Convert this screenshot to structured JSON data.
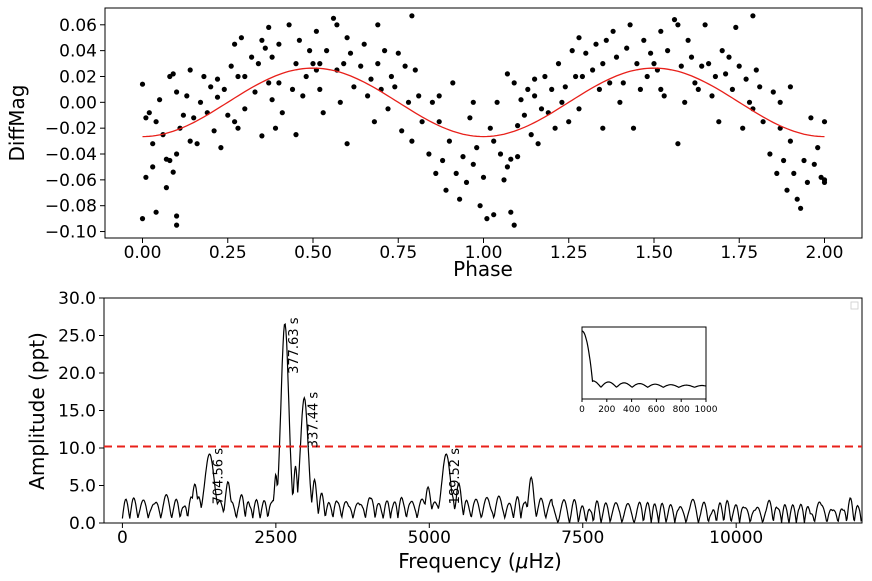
{
  "colors": {
    "points": "#000000",
    "fit": "#e8201a",
    "threshold": "#e8201a",
    "spectrum": "#000000"
  },
  "chart_data": [
    {
      "type": "scatter",
      "xlabel": "Phase",
      "ylabel": "DiffMag",
      "xlim": [
        -0.11,
        2.11
      ],
      "ylim": [
        -0.105,
        0.073
      ],
      "xticks": [
        0.0,
        0.25,
        0.5,
        0.75,
        1.0,
        1.25,
        1.5,
        1.75,
        2.0
      ],
      "xtick_labels": [
        "0.00",
        "0.25",
        "0.50",
        "0.75",
        "1.00",
        "1.25",
        "1.50",
        "1.75",
        "2.00"
      ],
      "yticks": [
        0.06,
        0.04,
        0.02,
        0.0,
        -0.02,
        -0.04,
        -0.06,
        -0.08,
        -0.1
      ],
      "ytick_labels": [
        "0.06",
        "0.04",
        "0.02",
        "0.00",
        "−0.02",
        "−0.04",
        "−0.06",
        "−0.08",
        "−0.10"
      ],
      "fit": {
        "name": "sinusoid fit",
        "amplitude": 0.0265,
        "peak_phase": 0.5
      },
      "points": [
        [
          0.0,
          -0.09
        ],
        [
          0.0,
          0.014
        ],
        [
          0.01,
          -0.012
        ],
        [
          0.01,
          -0.058
        ],
        [
          0.02,
          -0.008
        ],
        [
          0.03,
          -0.05
        ],
        [
          0.03,
          -0.032
        ],
        [
          0.04,
          -0.085
        ],
        [
          0.04,
          -0.015
        ],
        [
          0.05,
          0.002
        ],
        [
          0.06,
          -0.025
        ],
        [
          0.07,
          -0.044
        ],
        [
          0.07,
          -0.066
        ],
        [
          0.08,
          -0.045
        ],
        [
          0.08,
          0.02
        ],
        [
          0.09,
          0.022
        ],
        [
          0.09,
          -0.054
        ],
        [
          0.1,
          -0.088
        ],
        [
          0.1,
          -0.095
        ],
        [
          0.1,
          -0.04
        ],
        [
          0.1,
          0.008
        ],
        [
          0.11,
          -0.02
        ],
        [
          0.12,
          -0.01
        ],
        [
          0.13,
          0.005
        ],
        [
          0.14,
          -0.03
        ],
        [
          0.14,
          0.025
        ],
        [
          0.15,
          -0.012
        ],
        [
          0.16,
          -0.032
        ],
        [
          0.17,
          0.0
        ],
        [
          0.18,
          0.02
        ],
        [
          0.19,
          -0.008
        ],
        [
          0.2,
          0.012
        ],
        [
          0.21,
          -0.022
        ],
        [
          0.22,
          0.018
        ],
        [
          0.22,
          0.004
        ],
        [
          0.23,
          -0.035
        ],
        [
          0.24,
          0.01
        ],
        [
          0.25,
          -0.01
        ],
        [
          0.26,
          0.028
        ],
        [
          0.27,
          0.045
        ],
        [
          0.27,
          -0.015
        ],
        [
          0.28,
          0.02
        ],
        [
          0.28,
          -0.02
        ],
        [
          0.29,
          0.05
        ],
        [
          0.3,
          -0.005
        ],
        [
          0.3,
          0.02
        ],
        [
          0.32,
          0.035
        ],
        [
          0.33,
          0.008
        ],
        [
          0.34,
          0.03
        ],
        [
          0.35,
          0.048
        ],
        [
          0.35,
          -0.026
        ],
        [
          0.36,
          0.042
        ],
        [
          0.37,
          0.015
        ],
        [
          0.37,
          0.058
        ],
        [
          0.38,
          0.002
        ],
        [
          0.38,
          0.035
        ],
        [
          0.39,
          -0.02
        ],
        [
          0.4,
          0.015
        ],
        [
          0.4,
          0.045
        ],
        [
          0.41,
          -0.008
        ],
        [
          0.43,
          0.06
        ],
        [
          0.44,
          0.01
        ],
        [
          0.45,
          0.03
        ],
        [
          0.45,
          -0.025
        ],
        [
          0.46,
          0.048
        ],
        [
          0.47,
          0.005
        ],
        [
          0.48,
          0.02
        ],
        [
          0.49,
          0.04
        ],
        [
          0.5,
          0.03
        ],
        [
          0.51,
          0.025
        ],
        [
          0.51,
          0.055
        ],
        [
          0.52,
          0.01
        ],
        [
          0.52,
          0.03
        ],
        [
          0.53,
          -0.008
        ],
        [
          0.54,
          0.04
        ],
        [
          0.56,
          0.065
        ],
        [
          0.57,
          0.025
        ],
        [
          0.57,
          0.06
        ],
        [
          0.58,
          0.0
        ],
        [
          0.59,
          0.03
        ],
        [
          0.6,
          -0.032
        ],
        [
          0.6,
          0.05
        ],
        [
          0.61,
          0.038
        ],
        [
          0.62,
          0.012
        ],
        [
          0.64,
          0.028
        ],
        [
          0.65,
          0.045
        ],
        [
          0.66,
          0.005
        ],
        [
          0.67,
          0.018
        ],
        [
          0.68,
          -0.015
        ],
        [
          0.69,
          0.03
        ],
        [
          0.69,
          0.06
        ],
        [
          0.7,
          0.01
        ],
        [
          0.71,
          0.04
        ],
        [
          0.72,
          -0.005
        ],
        [
          0.73,
          0.02
        ],
        [
          0.74,
          0.012
        ],
        [
          0.75,
          0.038
        ],
        [
          0.76,
          -0.022
        ],
        [
          0.77,
          0.028
        ],
        [
          0.78,
          0.0
        ],
        [
          0.79,
          0.067
        ],
        [
          0.79,
          -0.03
        ],
        [
          0.8,
          0.025
        ],
        [
          0.81,
          0.005
        ],
        [
          0.82,
          -0.015
        ],
        [
          0.84,
          -0.04
        ],
        [
          0.85,
          0.0
        ],
        [
          0.86,
          -0.055
        ],
        [
          0.87,
          -0.015
        ],
        [
          0.87,
          0.005
        ],
        [
          0.88,
          -0.045
        ],
        [
          0.89,
          -0.068
        ],
        [
          0.9,
          -0.03
        ],
        [
          0.91,
          0.015
        ],
        [
          0.92,
          -0.055
        ],
        [
          0.93,
          -0.075
        ],
        [
          0.94,
          -0.042
        ],
        [
          0.95,
          -0.062
        ],
        [
          0.96,
          -0.012
        ],
        [
          0.97,
          0.0
        ],
        [
          0.97,
          -0.048
        ],
        [
          0.98,
          -0.035
        ],
        [
          0.99,
          -0.08
        ],
        [
          1.0,
          -0.058
        ],
        [
          1.01,
          -0.09
        ],
        [
          1.02,
          -0.02
        ],
        [
          1.03,
          -0.03
        ],
        [
          1.03,
          -0.087
        ],
        [
          1.04,
          0.0
        ],
        [
          1.05,
          -0.04
        ],
        [
          1.06,
          -0.06
        ],
        [
          1.07,
          0.022
        ],
        [
          1.07,
          -0.05
        ],
        [
          1.08,
          -0.085
        ],
        [
          1.08,
          -0.044
        ],
        [
          1.09,
          0.015
        ],
        [
          1.09,
          -0.095
        ],
        [
          1.1,
          -0.018
        ],
        [
          1.1,
          -0.042
        ],
        [
          1.11,
          0.002
        ],
        [
          1.12,
          -0.01
        ],
        [
          1.13,
          0.01
        ],
        [
          1.14,
          -0.025
        ],
        [
          1.15,
          0.018
        ],
        [
          1.15,
          0.005
        ],
        [
          1.16,
          -0.032
        ],
        [
          1.17,
          -0.005
        ],
        [
          1.18,
          0.02
        ],
        [
          1.19,
          -0.008
        ],
        [
          1.2,
          0.01
        ],
        [
          1.21,
          -0.02
        ],
        [
          1.22,
          0.03
        ],
        [
          1.23,
          0.0
        ],
        [
          1.24,
          0.012
        ],
        [
          1.25,
          -0.015
        ],
        [
          1.26,
          0.04
        ],
        [
          1.27,
          0.02
        ],
        [
          1.28,
          0.05
        ],
        [
          1.28,
          -0.005
        ],
        [
          1.29,
          0.02
        ],
        [
          1.3,
          0.038
        ],
        [
          1.32,
          0.025
        ],
        [
          1.33,
          0.045
        ],
        [
          1.34,
          0.01
        ],
        [
          1.35,
          0.03
        ],
        [
          1.35,
          -0.02
        ],
        [
          1.36,
          0.048
        ],
        [
          1.37,
          0.015
        ],
        [
          1.38,
          0.055
        ],
        [
          1.39,
          0.035
        ],
        [
          1.4,
          0.0
        ],
        [
          1.41,
          0.015
        ],
        [
          1.42,
          0.042
        ],
        [
          1.43,
          0.06
        ],
        [
          1.44,
          -0.02
        ],
        [
          1.45,
          0.03
        ],
        [
          1.46,
          0.01
        ],
        [
          1.47,
          0.048
        ],
        [
          1.48,
          0.02
        ],
        [
          1.49,
          0.038
        ],
        [
          1.5,
          0.03
        ],
        [
          1.51,
          0.025
        ],
        [
          1.52,
          0.055
        ],
        [
          1.52,
          0.01
        ],
        [
          1.53,
          0.005
        ],
        [
          1.54,
          0.04
        ],
        [
          1.56,
          0.064
        ],
        [
          1.57,
          -0.032
        ],
        [
          1.57,
          0.06
        ],
        [
          1.58,
          0.028
        ],
        [
          1.59,
          0.0
        ],
        [
          1.6,
          0.048
        ],
        [
          1.61,
          0.035
        ],
        [
          1.62,
          0.015
        ],
        [
          1.63,
          0.01
        ],
        [
          1.64,
          0.028
        ],
        [
          1.65,
          0.06
        ],
        [
          1.66,
          0.03
        ],
        [
          1.67,
          0.005
        ],
        [
          1.68,
          0.02
        ],
        [
          1.69,
          -0.015
        ],
        [
          1.7,
          0.04
        ],
        [
          1.71,
          0.022
        ],
        [
          1.72,
          0.035
        ],
        [
          1.73,
          0.01
        ],
        [
          1.74,
          0.058
        ],
        [
          1.75,
          0.028
        ],
        [
          1.76,
          -0.02
        ],
        [
          1.77,
          0.018
        ],
        [
          1.78,
          0.0
        ],
        [
          1.79,
          0.067
        ],
        [
          1.79,
          -0.005
        ],
        [
          1.8,
          0.025
        ],
        [
          1.81,
          0.012
        ],
        [
          1.82,
          -0.015
        ],
        [
          1.84,
          -0.04
        ],
        [
          1.85,
          0.008
        ],
        [
          1.86,
          -0.055
        ],
        [
          1.87,
          -0.02
        ],
        [
          1.87,
          0.0
        ],
        [
          1.88,
          -0.045
        ],
        [
          1.89,
          -0.068
        ],
        [
          1.9,
          -0.03
        ],
        [
          1.9,
          0.012
        ],
        [
          1.91,
          -0.055
        ],
        [
          1.92,
          -0.075
        ],
        [
          1.93,
          -0.082
        ],
        [
          1.94,
          -0.045
        ],
        [
          1.95,
          -0.062
        ],
        [
          1.96,
          -0.012
        ],
        [
          1.97,
          -0.048
        ],
        [
          1.98,
          -0.035
        ],
        [
          1.99,
          -0.058
        ],
        [
          2.0,
          -0.062
        ],
        [
          2.0,
          -0.015
        ],
        [
          2.0,
          -0.06
        ]
      ]
    },
    {
      "type": "line",
      "xlabel": "Frequency (",
      "xlabel_mu": "μ",
      "xlabel_unit": "Hz)",
      "ylabel": "Amplitude (ppt)",
      "xlim": [
        -300,
        12050
      ],
      "ylim": [
        0,
        30
      ],
      "xticks": [
        0,
        2500,
        5000,
        7500,
        10000
      ],
      "xtick_labels": [
        "0",
        "2500",
        "5000",
        "7500",
        "10000"
      ],
      "yticks": [
        0,
        5,
        10,
        15,
        20,
        25,
        30
      ],
      "ytick_labels": [
        "0.0",
        "5.0",
        "10.0",
        "15.0",
        "20.0",
        "25.0",
        "30.0"
      ],
      "threshold": 10.2,
      "peaks": [
        {
          "freq": 1420,
          "amp": 9.2,
          "width": 110,
          "label": "704.56 s"
        },
        {
          "freq": 2647,
          "amp": 26.6,
          "width": 90,
          "label": "377.63 s"
        },
        {
          "freq": 2963,
          "amp": 16.7,
          "width": 90,
          "label": "337.44 s"
        },
        {
          "freq": 5276,
          "amp": 9.2,
          "width": 100,
          "label": "189.52 s"
        }
      ],
      "minor_peaks": [
        {
          "freq": 2500,
          "amp": 6.5,
          "width": 40
        },
        {
          "freq": 2820,
          "amp": 7.6,
          "width": 45
        },
        {
          "freq": 3130,
          "amp": 5.8,
          "width": 50
        },
        {
          "freq": 4980,
          "amp": 4.8,
          "width": 60
        },
        {
          "freq": 5480,
          "amp": 5.3,
          "width": 60
        },
        {
          "freq": 6660,
          "amp": 6.1,
          "width": 60
        },
        {
          "freq": 1180,
          "amp": 5.2,
          "width": 60
        },
        {
          "freq": 1720,
          "amp": 5.5,
          "width": 60
        }
      ],
      "inset": {
        "xlim": [
          0,
          1000
        ],
        "xticks": [
          0,
          200,
          400,
          600,
          800,
          1000
        ],
        "xtick_labels": [
          "0",
          "200",
          "400",
          "600",
          "800",
          "1000"
        ]
      }
    }
  ]
}
